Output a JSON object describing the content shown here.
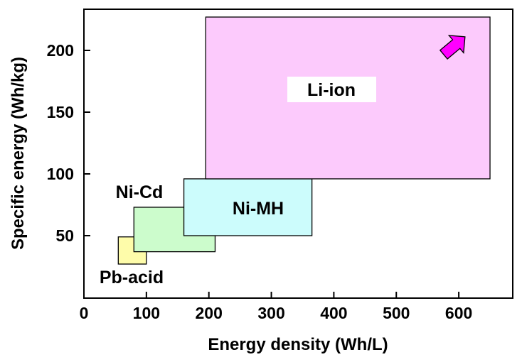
{
  "chart_data": {
    "type": "range-region",
    "xlabel": "Energy density (Wh/L)",
    "ylabel": "Specific energy (Wh/kg)",
    "xlim": [
      0,
      700
    ],
    "ylim": [
      0,
      228
    ],
    "xticks": [
      0,
      100,
      200,
      300,
      400,
      500,
      600
    ],
    "yticks": [
      50,
      100,
      150,
      200
    ],
    "grid": false,
    "regions": [
      {
        "name": "Pb-acid",
        "x": [
          55,
          100
        ],
        "y": [
          27,
          49
        ],
        "color": "#fefcaa",
        "label_pos": "below-right"
      },
      {
        "name": "Ni-Cd",
        "x": [
          80,
          210
        ],
        "y": [
          37,
          73
        ],
        "color": "#ccfccc",
        "label_pos": "above-left"
      },
      {
        "name": "Ni-MH",
        "x": [
          160,
          365
        ],
        "y": [
          50,
          96
        ],
        "color": "#ccfcfc",
        "label_pos": "inside"
      },
      {
        "name": "Li-ion",
        "x": [
          195,
          650
        ],
        "y": [
          96,
          227
        ],
        "color": "#fccafc",
        "label_pos": "inside"
      }
    ],
    "annotations": [
      {
        "type": "arrow",
        "direction": "up-right",
        "color": "#ff00ff"
      }
    ]
  }
}
